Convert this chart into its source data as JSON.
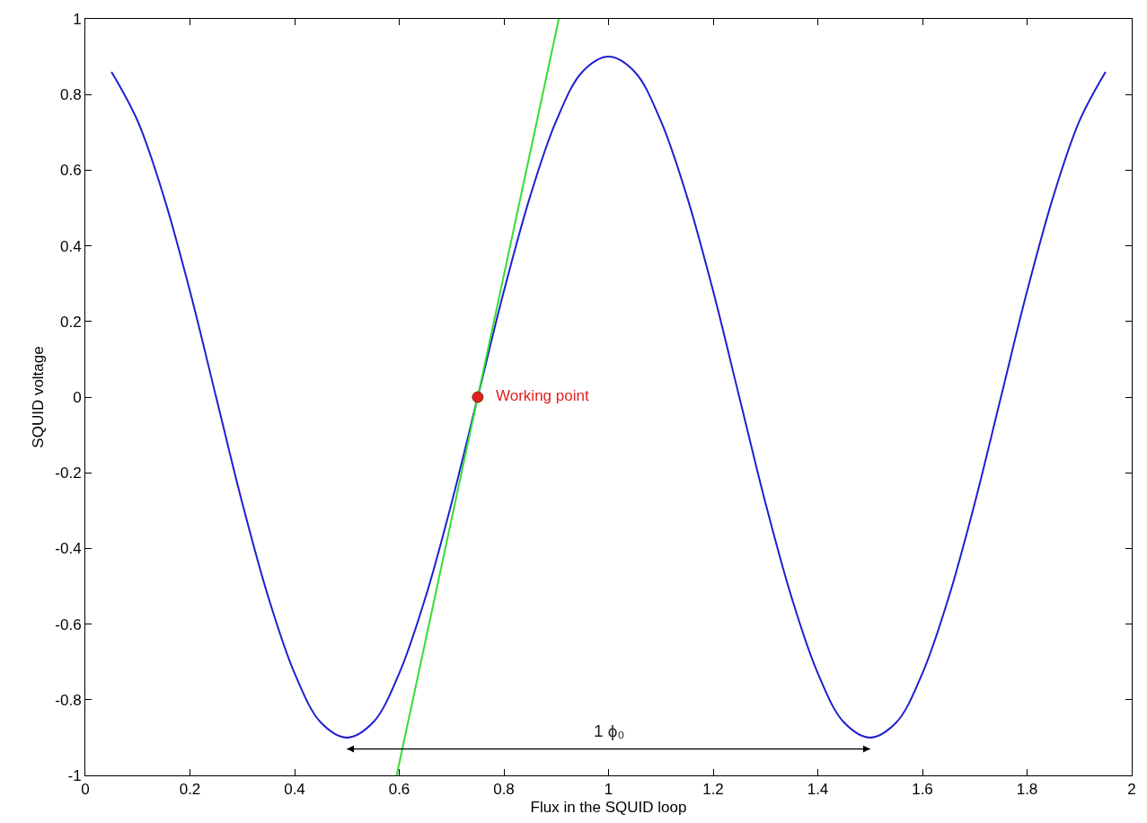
{
  "chart_data": {
    "type": "line",
    "xlabel": "Flux in the SQUID loop",
    "ylabel": "SQUID voltage",
    "xlim": [
      0,
      2
    ],
    "xticks": [
      0,
      0.2,
      0.4,
      0.6,
      0.8,
      1,
      1.2,
      1.4,
      1.6,
      1.8,
      2
    ],
    "ylim": [
      -1,
      1
    ],
    "yticks": [
      -1,
      -0.8,
      -0.6,
      -0.4,
      -0.2,
      0,
      0.2,
      0.4,
      0.6,
      0.8,
      1
    ],
    "series": [
      {
        "color": "#1f1fd0",
        "x": [
          0.05,
          0.1,
          0.15,
          0.2,
          0.25,
          0.3,
          0.35,
          0.4,
          0.45,
          0.5,
          0.55,
          0.6,
          0.65,
          0.7,
          0.75,
          0.8,
          0.85,
          0.9,
          0.95,
          1.0,
          1.05,
          1.1,
          1.15,
          1.2,
          1.25,
          1.3,
          1.35,
          1.4,
          1.45,
          1.5,
          1.55,
          1.6,
          1.65,
          1.7,
          1.75,
          1.8,
          1.85,
          1.9,
          1.95
        ],
        "values": [
          0.86,
          0.73,
          0.53,
          0.28,
          0,
          -0.28,
          -0.53,
          -0.73,
          -0.86,
          -0.9,
          -0.86,
          -0.73,
          -0.53,
          -0.28,
          0,
          0.28,
          0.53,
          0.73,
          0.86,
          0.9,
          0.86,
          0.73,
          0.53,
          0.28,
          0,
          -0.28,
          -0.53,
          -0.73,
          -0.86,
          -0.9,
          -0.86,
          -0.73,
          -0.53,
          -0.28,
          0,
          0.28,
          0.53,
          0.73,
          0.86
        ]
      },
      {
        "color": "#33dd33",
        "x": [
          0.595,
          0.905
        ],
        "values": [
          -1,
          1
        ]
      },
      {
        "type": "scatter",
        "marker": "circle",
        "color": "#e02020",
        "x": [
          0.75
        ],
        "values": [
          0
        ]
      },
      {
        "color": "#000000",
        "marker": "triangle",
        "x": [
          0.5,
          1.5
        ],
        "values": [
          -0.93,
          -0.93
        ]
      }
    ],
    "annotations": [
      {
        "text": "Working point",
        "x": 0.75,
        "y": 0
      },
      {
        "text": "1 ϕ₀",
        "x": 1,
        "y": -0.93
      }
    ]
  }
}
